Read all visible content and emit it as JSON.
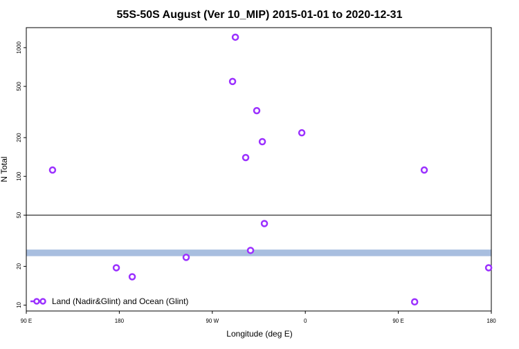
{
  "chart_data": {
    "type": "scatter",
    "title": "55S-50S August (Ver 10_MIP)   2015-01-01 to 2020-12-31",
    "xlabel": "Longitude (deg E)",
    "ylabel": "N Total",
    "log_y": true,
    "xlim": [
      90,
      540
    ],
    "ylim": [
      9,
      1430
    ],
    "xticks": [
      {
        "value": 90,
        "label": "90 E"
      },
      {
        "value": 180,
        "label": "180"
      },
      {
        "value": 270,
        "label": "90 W"
      },
      {
        "value": 360,
        "label": "0"
      },
      {
        "value": 450,
        "label": "90 E"
      },
      {
        "value": 540,
        "label": "180"
      }
    ],
    "yticks": [
      10,
      20,
      50,
      100,
      200,
      500,
      1000
    ],
    "hline": 50,
    "band": [
      24,
      27
    ],
    "band_color": "#a8bedf",
    "legend_position": "bottom-left",
    "series": [
      {
        "name": "Land (Nadir&Glint) and Ocean (Glint)",
        "color": "#9b30ff",
        "x": [
          115.4,
          292.3,
          289.6,
          313,
          356.6,
          318.4,
          302.3,
          475.1,
          320.4,
          307,
          244.7,
          177.1,
          192.5,
          537.4,
          465.8
        ],
        "values": [
          112,
          1205,
          546,
          324,
          218,
          186,
          140,
          112,
          43,
          26.6,
          23.5,
          19.5,
          16.6,
          19.5,
          10.6
        ]
      }
    ]
  }
}
